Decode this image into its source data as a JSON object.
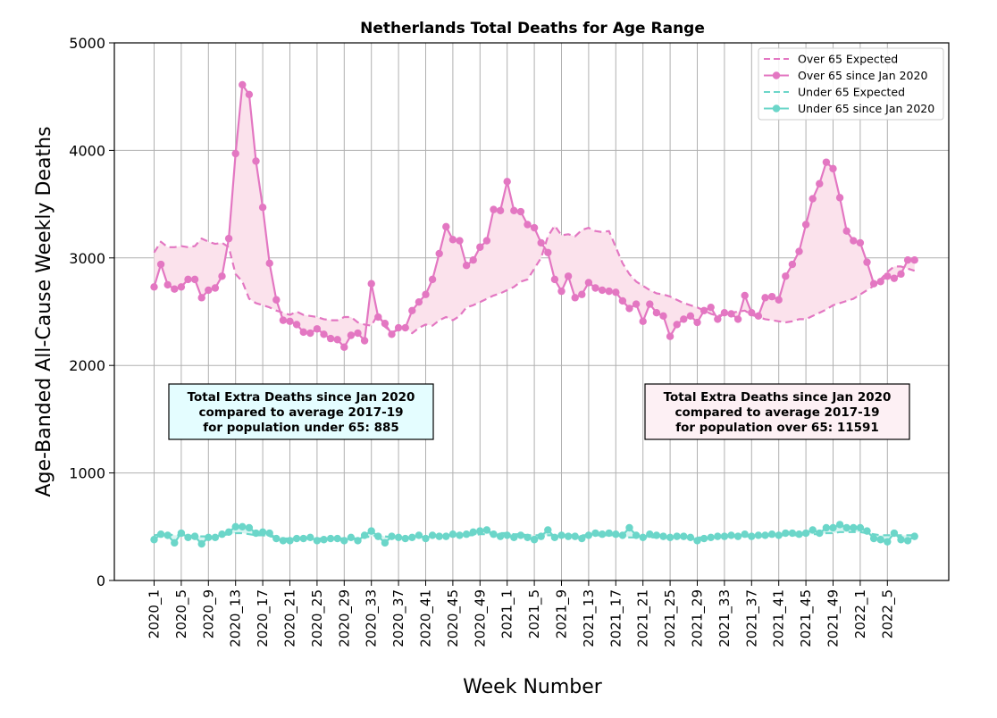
{
  "chart_data": {
    "type": "line",
    "title": "Netherlands Total Deaths for Age Range",
    "xlabel": "Week Number",
    "ylabel": "Age-Banded All-Cause Weekly Deaths",
    "ylim": [
      0,
      5000
    ],
    "yticks": [
      0,
      1000,
      2000,
      3000,
      4000,
      5000
    ],
    "grid": true,
    "legend_position": "top-right",
    "x_tick_labels": [
      "2020_1",
      "2020_5",
      "2020_9",
      "2020_13",
      "2020_17",
      "2020_21",
      "2020_25",
      "2020_29",
      "2020_33",
      "2020_37",
      "2020_41",
      "2020_45",
      "2020_49",
      "2021_1",
      "2021_5",
      "2021_9",
      "2021_13",
      "2021_17",
      "2021_21",
      "2021_25",
      "2021_29",
      "2021_33",
      "2021_37",
      "2021_41",
      "2021_45",
      "2021_49",
      "2022_1",
      "2022_5"
    ],
    "x_tick_step": 4,
    "x_count": 113,
    "series": [
      {
        "name": "Over 65 Expected",
        "style": "dashed",
        "color": "#e377c2",
        "values": [
          3050,
          3150,
          3100,
          3100,
          3110,
          3100,
          3110,
          3180,
          3150,
          3130,
          3140,
          3100,
          2850,
          2780,
          2620,
          2580,
          2560,
          2540,
          2510,
          2490,
          2470,
          2500,
          2470,
          2460,
          2450,
          2430,
          2420,
          2420,
          2450,
          2450,
          2400,
          2380,
          2370,
          2480,
          2360,
          2310,
          2330,
          2370,
          2300,
          2350,
          2380,
          2370,
          2420,
          2450,
          2420,
          2460,
          2540,
          2560,
          2590,
          2620,
          2650,
          2670,
          2700,
          2730,
          2780,
          2800,
          2900,
          3000,
          3200,
          3300,
          3210,
          3220,
          3200,
          3260,
          3280,
          3250,
          3240,
          3250,
          3100,
          2950,
          2850,
          2780,
          2740,
          2700,
          2670,
          2660,
          2640,
          2610,
          2580,
          2560,
          2540,
          2510,
          2480,
          2460,
          2480,
          2490,
          2500,
          2510,
          2470,
          2450,
          2430,
          2420,
          2410,
          2400,
          2410,
          2430,
          2430,
          2460,
          2490,
          2520,
          2560,
          2580,
          2600,
          2620,
          2660,
          2700,
          2740,
          2800,
          2870,
          2920,
          2920,
          2900,
          2880
        ]
      },
      {
        "name": "Over 65 since Jan 2020",
        "style": "solid-marker",
        "color": "#e377c2",
        "values": [
          2730,
          2940,
          2750,
          2710,
          2730,
          2800,
          2800,
          2630,
          2700,
          2720,
          2830,
          3180,
          3970,
          4610,
          4520,
          3900,
          3470,
          2950,
          2610,
          2420,
          2410,
          2380,
          2310,
          2300,
          2340,
          2290,
          2250,
          2240,
          2170,
          2280,
          2300,
          2230,
          2760,
          2450,
          2390,
          2290,
          2350,
          2350,
          2510,
          2590,
          2660,
          2800,
          3040,
          3290,
          3170,
          3160,
          2930,
          2980,
          3100,
          3160,
          3450,
          3440,
          3710,
          3440,
          3430,
          3310,
          3280,
          3140,
          3050,
          2800,
          2690,
          2830,
          2630,
          2660,
          2770,
          2720,
          2700,
          2690,
          2680,
          2600,
          2530,
          2570,
          2410,
          2570,
          2490,
          2460,
          2270,
          2380,
          2430,
          2460,
          2400,
          2510,
          2540,
          2430,
          2490,
          2480,
          2430,
          2650,
          2490,
          2460,
          2630,
          2640,
          2610,
          2830,
          2940,
          3060,
          3310,
          3550,
          3690,
          3890,
          3830,
          3560,
          3250,
          3160,
          3140,
          2960,
          2760,
          2780,
          2830,
          2810,
          2850,
          2980,
          2980
        ]
      },
      {
        "name": "Under 65 Expected",
        "style": "dashed",
        "color": "#6bd6c9",
        "values": [
          420,
          430,
          430,
          420,
          420,
          420,
          410,
          410,
          410,
          410,
          420,
          430,
          440,
          440,
          430,
          420,
          420,
          410,
          400,
          390,
          390,
          390,
          390,
          390,
          390,
          390,
          390,
          390,
          390,
          390,
          390,
          400,
          410,
          420,
          410,
          400,
          400,
          400,
          400,
          400,
          410,
          410,
          410,
          420,
          420,
          420,
          420,
          420,
          430,
          430,
          440,
          440,
          440,
          430,
          430,
          420,
          420,
          420,
          420,
          420,
          420,
          420,
          420,
          420,
          420,
          420,
          420,
          420,
          420,
          410,
          400,
          400,
          400,
          400,
          400,
          400,
          400,
          400,
          400,
          400,
          400,
          400,
          400,
          400,
          400,
          410,
          410,
          410,
          410,
          410,
          410,
          420,
          420,
          420,
          420,
          420,
          430,
          430,
          430,
          440,
          440,
          450,
          450,
          450,
          450,
          440,
          430,
          420,
          420,
          420,
          420,
          420,
          420
        ]
      },
      {
        "name": "Under 65 since Jan 2020",
        "style": "solid-marker",
        "color": "#6bd6c9",
        "values": [
          380,
          430,
          420,
          350,
          440,
          400,
          410,
          340,
          400,
          400,
          430,
          450,
          500,
          500,
          490,
          440,
          450,
          440,
          390,
          370,
          370,
          390,
          390,
          400,
          370,
          380,
          390,
          390,
          370,
          400,
          370,
          420,
          460,
          410,
          350,
          410,
          400,
          390,
          400,
          420,
          390,
          420,
          410,
          410,
          430,
          420,
          430,
          450,
          460,
          470,
          430,
          410,
          420,
          400,
          420,
          400,
          380,
          410,
          470,
          400,
          420,
          410,
          410,
          390,
          420,
          440,
          430,
          440,
          430,
          420,
          490,
          420,
          400,
          430,
          420,
          410,
          400,
          410,
          410,
          400,
          370,
          390,
          400,
          410,
          410,
          420,
          410,
          430,
          410,
          420,
          420,
          430,
          420,
          440,
          440,
          430,
          440,
          470,
          440,
          490,
          490,
          520,
          490,
          490,
          490,
          460,
          390,
          380,
          360,
          440,
          380,
          370,
          410
        ]
      }
    ],
    "annotations": [
      {
        "lines": [
          "Total Extra Deaths since Jan 2020",
          "compared to average 2017-19",
          "for population under 65: 885"
        ],
        "box_color": "#e4fdff"
      },
      {
        "lines": [
          "Total Extra Deaths since Jan 2020",
          "compared to average 2017-19",
          "for population over 65: 11591"
        ],
        "box_color": "#fdf0f4"
      }
    ],
    "fill_colors": {
      "over_65": "#fbe2ec",
      "under_65": "#d9f4f1"
    }
  }
}
